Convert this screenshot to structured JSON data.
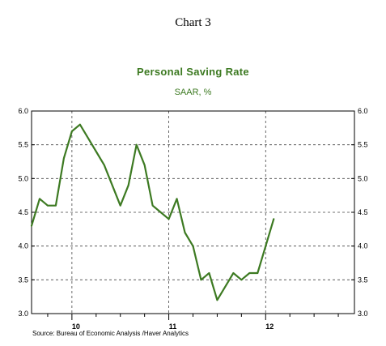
{
  "page_title": "Chart 3",
  "chart_data": {
    "type": "line",
    "title": "Personal Saving Rate",
    "subtitle": "SAAR, %",
    "source": "Source:  Bureau of Economic Analysis /Haver Analytics",
    "ylim": [
      3.0,
      6.0
    ],
    "y_ticks": [
      "3.0",
      "3.5",
      "4.0",
      "4.5",
      "5.0",
      "5.5",
      "6.0"
    ],
    "x_ticks": [
      "10",
      "11",
      "12"
    ],
    "grid": true,
    "line_color": "#3d7a22",
    "x_start": "2009-08",
    "x_end": "2012-12",
    "series": [
      {
        "x": [
          "2009-08",
          "2009-09",
          "2009-10",
          "2009-11",
          "2009-12",
          "2010-01",
          "2010-02",
          "2010-03",
          "2010-04",
          "2010-05",
          "2010-06",
          "2010-07",
          "2010-08",
          "2010-09",
          "2010-10",
          "2010-11",
          "2010-12",
          "2011-01",
          "2011-02",
          "2011-03",
          "2011-04",
          "2011-05",
          "2011-06",
          "2011-07",
          "2011-08",
          "2011-09",
          "2011-10",
          "2011-11",
          "2011-12",
          "2012-01",
          "2012-02",
          "2012-03"
        ],
        "values": [
          4.3,
          4.7,
          4.6,
          4.6,
          5.3,
          5.7,
          5.8,
          5.6,
          5.4,
          5.2,
          4.9,
          4.6,
          4.9,
          5.5,
          5.2,
          4.6,
          4.5,
          4.4,
          4.7,
          4.2,
          4.0,
          3.5,
          3.6,
          3.2,
          3.4,
          3.6,
          3.5,
          3.6,
          3.6,
          4.0,
          4.4,
          null
        ]
      }
    ]
  }
}
